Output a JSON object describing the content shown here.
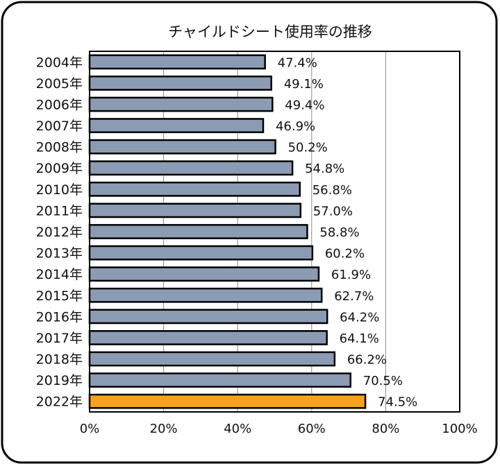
{
  "chart_data": {
    "type": "bar",
    "orientation": "horizontal",
    "title": "チャイルドシート使用率の推移",
    "categories": [
      "2004年",
      "2005年",
      "2006年",
      "2007年",
      "2008年",
      "2009年",
      "2010年",
      "2011年",
      "2012年",
      "2013年",
      "2014年",
      "2015年",
      "2016年",
      "2017年",
      "2018年",
      "2019年",
      "2022年"
    ],
    "values": [
      47.4,
      49.1,
      49.4,
      46.9,
      50.2,
      54.8,
      56.8,
      57.0,
      58.8,
      60.2,
      61.9,
      62.7,
      64.2,
      64.1,
      66.2,
      70.5,
      74.5
    ],
    "data_labels": [
      "47.4%",
      "49.1%",
      "49.4%",
      "46.9%",
      "50.2%",
      "54.8%",
      "56.8%",
      "57.0%",
      "58.8%",
      "60.2%",
      "61.9%",
      "62.7%",
      "64.2%",
      "64.1%",
      "66.2%",
      "70.5%",
      "74.5%"
    ],
    "x_ticks": [
      0,
      20,
      40,
      60,
      80,
      100
    ],
    "x_tick_labels": [
      "0%",
      "20%",
      "40%",
      "60%",
      "80%",
      "100%"
    ],
    "xlim": [
      0,
      100
    ],
    "gridlines": "vertical",
    "bar_color": "#8c9bb4",
    "highlight_color": "#f7a21b",
    "highlight_category": "2022年",
    "legend": "none"
  }
}
